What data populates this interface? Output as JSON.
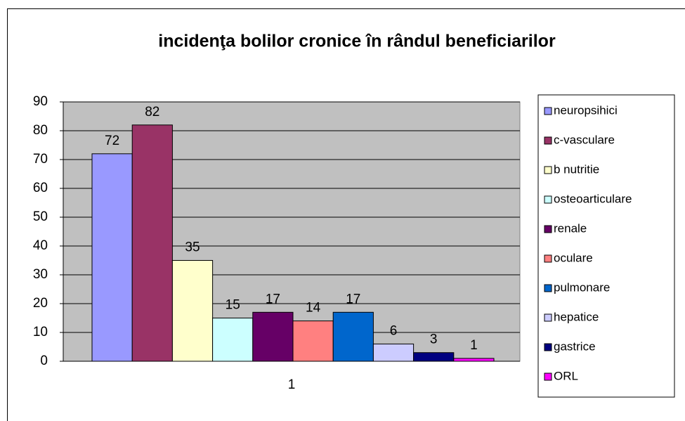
{
  "chart_data": {
    "type": "bar",
    "title": "incidenţa bolilor cronice în rândul beneficiarilor",
    "categories": [
      "1"
    ],
    "series": [
      {
        "name": "neuropsihici",
        "color": "#9999ff",
        "values": [
          72
        ]
      },
      {
        "name": "c-vasculare",
        "color": "#993366",
        "values": [
          82
        ]
      },
      {
        "name": "b nutritie",
        "color": "#ffffcc",
        "values": [
          35
        ]
      },
      {
        "name": "osteoarticulare",
        "color": "#ccffff",
        "values": [
          15
        ]
      },
      {
        "name": "renale",
        "color": "#660066",
        "values": [
          17
        ]
      },
      {
        "name": "oculare",
        "color": "#ff8080",
        "values": [
          14
        ]
      },
      {
        "name": "pulmonare",
        "color": "#0066cc",
        "values": [
          17
        ]
      },
      {
        "name": "hepatice",
        "color": "#ccccff",
        "values": [
          6
        ]
      },
      {
        "name": "gastrice",
        "color": "#000080",
        "values": [
          3
        ]
      },
      {
        "name": "ORL",
        "color": "#ff00ff",
        "values": [
          1
        ]
      }
    ],
    "ylim": [
      0,
      90
    ],
    "yticks": [
      0,
      10,
      20,
      30,
      40,
      50,
      60,
      70,
      80,
      90
    ],
    "grid": true,
    "legend": "right",
    "data_labels": true
  }
}
